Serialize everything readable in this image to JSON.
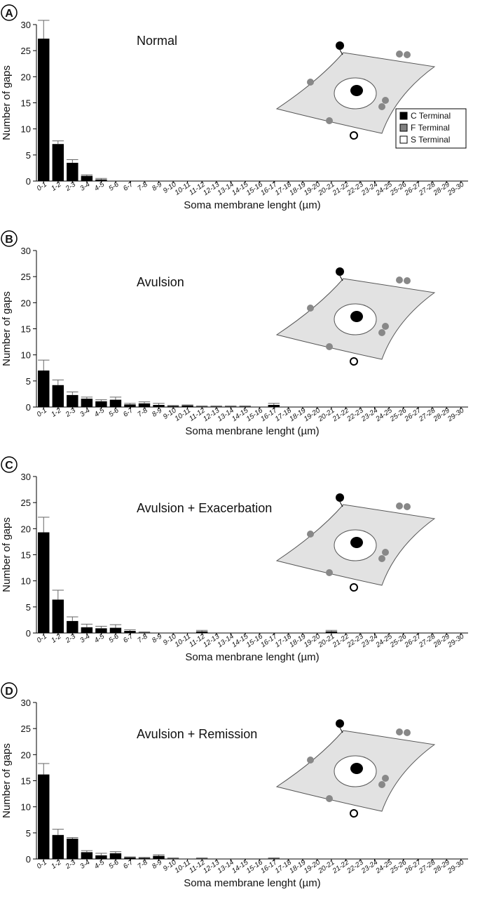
{
  "chart_data": [
    {
      "type": "bar",
      "panel": "A",
      "title": "Normal",
      "x_label": "Soma membrane lenght (µm)",
      "y_label": "Number of gaps",
      "categories": [
        "0-1",
        "1-2",
        "2-3",
        "3-4",
        "4-5",
        "5-6",
        "6-7",
        "7-8",
        "8-9",
        "9-10",
        "10-11",
        "11-12",
        "12-13",
        "13-14",
        "14-15",
        "15-16",
        "16-17",
        "17-18",
        "18-19",
        "19-20",
        "20-21",
        "21-22",
        "22-23",
        "23-24",
        "24-25",
        "25-26",
        "26-27",
        "27-28",
        "28-29",
        "29-30"
      ],
      "values": [
        27.3,
        7.1,
        3.5,
        1.0,
        0.3,
        0,
        0,
        0,
        0,
        0,
        0,
        0,
        0,
        0,
        0,
        0,
        0,
        0,
        0,
        0,
        0,
        0,
        0,
        0,
        0,
        0,
        0,
        0,
        0,
        0
      ],
      "errors": [
        3.5,
        0.6,
        0.6,
        0.2,
        0.2,
        0,
        0,
        0,
        0,
        0,
        0,
        0,
        0,
        0,
        0,
        0,
        0,
        0,
        0,
        0,
        0,
        0,
        0,
        0,
        0,
        0,
        0,
        0,
        0,
        0
      ],
      "color": "#000000",
      "ylim": [
        0,
        30
      ],
      "yticks": [
        0,
        5,
        10,
        15,
        20,
        25,
        30
      ],
      "legend": [
        {
          "name": "C Terminal",
          "color": "#000000"
        },
        {
          "name": "F Terminal",
          "color": "#808080"
        },
        {
          "name": "S Terminal",
          "color": "#ffffff"
        }
      ]
    },
    {
      "type": "bar",
      "panel": "B",
      "title": "Avulsion",
      "x_label": "Soma menbrane lenght (µm)",
      "y_label": "Number of gaps",
      "categories": [
        "0-1",
        "1-2",
        "2-3",
        "3-4",
        "4-5",
        "5-6",
        "6-7",
        "7-8",
        "8-9",
        "9-10",
        "10-11",
        "11-12",
        "12-13",
        "13-14",
        "14-15",
        "15-16",
        "16-17",
        "17-18",
        "18-19",
        "19-20",
        "20-21",
        "21-22",
        "22-23",
        "23-24",
        "24-25",
        "25-26",
        "26-27",
        "27-28",
        "28-29",
        "29-30"
      ],
      "values": [
        7.0,
        4.2,
        2.3,
        1.6,
        1.1,
        1.4,
        0.5,
        0.7,
        0.4,
        0.2,
        0.3,
        0.1,
        0.1,
        0.1,
        0.1,
        0,
        0.4,
        0,
        0,
        0,
        0,
        0,
        0,
        0,
        0,
        0,
        0,
        0,
        0,
        0
      ],
      "errors": [
        2.0,
        1.0,
        0.6,
        0.3,
        0.3,
        0.5,
        0.2,
        0.3,
        0.3,
        0.1,
        0.1,
        0.1,
        0.1,
        0.1,
        0.1,
        0,
        0.3,
        0,
        0,
        0,
        0,
        0,
        0,
        0,
        0,
        0,
        0,
        0,
        0,
        0
      ],
      "color": "#000000",
      "ylim": [
        0,
        30
      ],
      "yticks": [
        0,
        5,
        10,
        15,
        20,
        25,
        30
      ]
    },
    {
      "type": "bar",
      "panel": "C",
      "title": "Avulsion + Exacerbation",
      "x_label": "Soma menbrane lenght (µm)",
      "y_label": "Number of gaps",
      "categories": [
        "0-1",
        "1-2",
        "2-3",
        "3-4",
        "4-5",
        "5-6",
        "6-7",
        "7-8",
        "8-9",
        "9-10",
        "10-11",
        "11-12",
        "12-13",
        "13-14",
        "14-15",
        "15-16",
        "16-17",
        "17-18",
        "18-19",
        "19-20",
        "20-21",
        "21-22",
        "22-23",
        "23-24",
        "24-25",
        "25-26",
        "26-27",
        "27-28",
        "28-29",
        "29-30"
      ],
      "values": [
        19.3,
        6.4,
        2.3,
        1.1,
        0.9,
        1.0,
        0.4,
        0.1,
        0,
        0,
        0,
        0.3,
        0,
        0,
        0,
        0,
        0,
        0,
        0,
        0,
        0.3,
        0,
        0,
        0,
        0,
        0,
        0,
        0,
        0,
        0
      ],
      "errors": [
        2.9,
        1.8,
        0.8,
        0.6,
        0.4,
        0.6,
        0.2,
        0.1,
        0,
        0,
        0,
        0.2,
        0,
        0,
        0,
        0,
        0,
        0,
        0,
        0,
        0.2,
        0,
        0,
        0,
        0,
        0,
        0,
        0,
        0,
        0
      ],
      "color": "#000000",
      "ylim": [
        0,
        30
      ],
      "yticks": [
        0,
        5,
        10,
        15,
        20,
        25,
        30
      ]
    },
    {
      "type": "bar",
      "panel": "D",
      "title": "Avulsion + Remission",
      "x_label": "Soma membrane lenght (µm)",
      "y_label": "Number of gaps",
      "categories": [
        "0-1",
        "1-2",
        "2-3",
        "3-4",
        "4-5",
        "5-6",
        "6-7",
        "7-8",
        "8-9",
        "9-10",
        "10-11",
        "11-12",
        "12-13",
        "13-14",
        "14-15",
        "15-16",
        "16-17",
        "17-18",
        "18-19",
        "19-20",
        "20-21",
        "21-22",
        "22-23",
        "23-24",
        "24-25",
        "25-26",
        "26-27",
        "27-28",
        "28-29",
        "29-30"
      ],
      "values": [
        16.2,
        4.6,
        3.9,
        1.3,
        0.7,
        1.1,
        0.3,
        0.2,
        0.6,
        0.1,
        0,
        0.1,
        0,
        0,
        0,
        0,
        0.1,
        0,
        0,
        0,
        0,
        0,
        0,
        0,
        0,
        0,
        0,
        0,
        0,
        0
      ],
      "errors": [
        2.1,
        1.1,
        0.2,
        0.3,
        0.4,
        0.3,
        0.1,
        0.1,
        0.2,
        0.1,
        0,
        0.1,
        0,
        0,
        0,
        0,
        0.1,
        0,
        0,
        0,
        0,
        0,
        0,
        0,
        0,
        0,
        0,
        0,
        0,
        0
      ],
      "color": "#000000",
      "ylim": [
        0,
        30
      ],
      "yticks": [
        0,
        5,
        10,
        15,
        20,
        25,
        30
      ]
    }
  ]
}
